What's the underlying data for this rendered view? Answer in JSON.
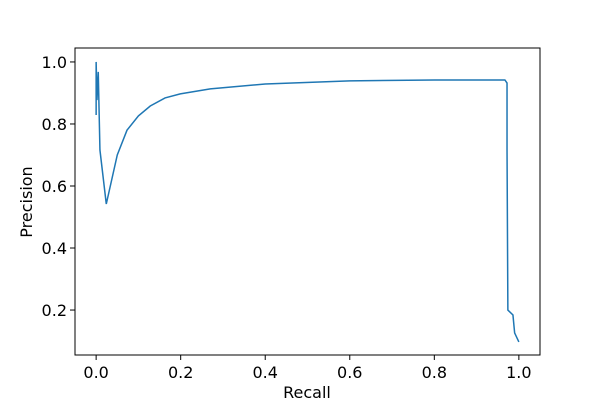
{
  "chart_data": {
    "type": "line",
    "xlabel": "Recall",
    "ylabel": "Precision",
    "x": [
      0.0,
      0.0,
      0.002,
      0.005,
      0.009,
      0.024,
      0.05,
      0.073,
      0.1,
      0.128,
      0.163,
      0.199,
      0.27,
      0.4,
      0.6,
      0.8,
      0.967,
      0.972,
      0.972,
      0.974,
      0.986,
      0.99,
      1.0
    ],
    "values": [
      0.829,
      1.0,
      0.877,
      0.968,
      0.716,
      0.542,
      0.7,
      0.78,
      0.826,
      0.858,
      0.884,
      0.897,
      0.913,
      0.929,
      0.939,
      0.942,
      0.942,
      0.932,
      0.716,
      0.2,
      0.184,
      0.126,
      0.097
    ],
    "color": "#1f77b4",
    "xlim": [
      -0.05,
      1.05
    ],
    "xticks": [
      {
        "value": 0,
        "label": "0.0"
      },
      0.2,
      0.4,
      0.6,
      0.8,
      {
        "value": 1,
        "label": "1.0"
      }
    ],
    "ylim": [
      0.055,
      1.045
    ],
    "yticks": [
      0.2,
      0.4,
      0.6,
      0.8,
      {
        "value": 1,
        "label": "1.0"
      }
    ],
    "grid": false
  }
}
